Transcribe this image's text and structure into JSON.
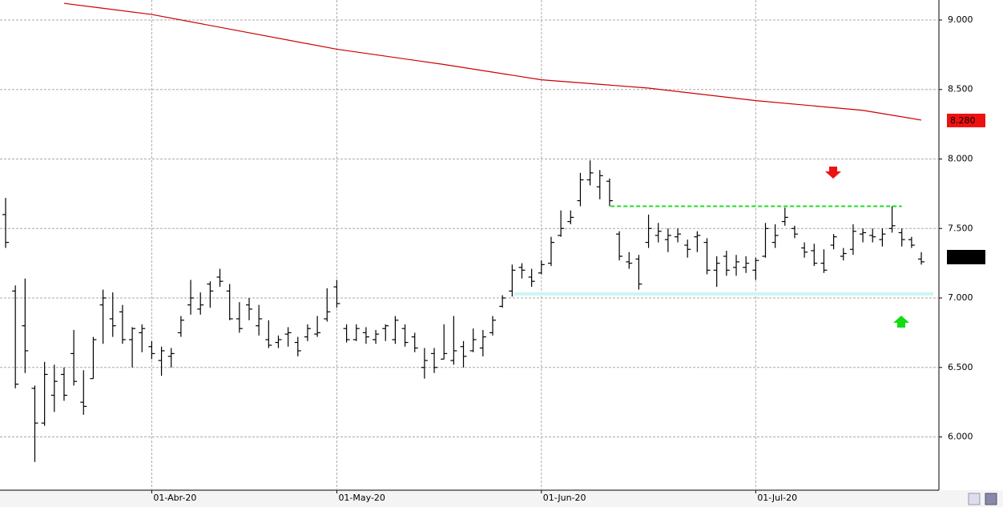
{
  "chart_data": {
    "type": "ohlc",
    "categories": [
      null,
      null,
      null,
      null,
      null,
      null,
      null,
      null,
      null,
      null,
      null,
      null,
      null,
      null,
      null,
      "01-Abr-20",
      null,
      null,
      null,
      null,
      null,
      null,
      null,
      null,
      null,
      null,
      null,
      null,
      null,
      null,
      null,
      null,
      null,
      null,
      "01-May-20",
      null,
      null,
      null,
      null,
      null,
      null,
      null,
      null,
      null,
      null,
      null,
      null,
      null,
      null,
      null,
      null,
      null,
      null,
      null,
      null,
      "01-Jun-20",
      null,
      null,
      null,
      null,
      null,
      null,
      null,
      null,
      null,
      null,
      null,
      null,
      null,
      null,
      null,
      null,
      null,
      null,
      null,
      null,
      null,
      "01-Jul-20",
      null,
      null,
      null,
      null,
      null,
      null,
      null,
      null,
      null,
      null,
      null,
      null,
      null,
      null,
      null,
      null,
      null
    ],
    "ohlc": [
      [
        7.6,
        7.72,
        7.36,
        7.4
      ],
      [
        7.05,
        7.09,
        6.35,
        6.38
      ],
      [
        6.8,
        7.14,
        6.46,
        6.62
      ],
      [
        6.35,
        6.37,
        5.82,
        6.1
      ],
      [
        6.1,
        6.54,
        6.08,
        6.45
      ],
      [
        6.3,
        6.52,
        6.18,
        6.4
      ],
      [
        6.45,
        6.5,
        6.26,
        6.3
      ],
      [
        6.6,
        6.77,
        6.37,
        6.4
      ],
      [
        6.25,
        6.48,
        6.16,
        6.22
      ],
      [
        6.42,
        6.72,
        6.42,
        6.7
      ],
      [
        6.95,
        7.06,
        6.67,
        7.0
      ],
      [
        6.85,
        7.04,
        6.72,
        6.8
      ],
      [
        6.9,
        6.95,
        6.67,
        6.7
      ],
      [
        6.7,
        6.79,
        6.5,
        6.78
      ],
      [
        6.75,
        6.81,
        6.61,
        6.78
      ],
      [
        6.65,
        6.69,
        6.56,
        6.6
      ],
      [
        6.55,
        6.65,
        6.44,
        6.62
      ],
      [
        6.58,
        6.64,
        6.5,
        6.6
      ],
      [
        6.75,
        6.87,
        6.72,
        6.84
      ],
      [
        6.95,
        7.13,
        6.88,
        7.0
      ],
      [
        6.92,
        7.04,
        6.88,
        6.95
      ],
      [
        7.1,
        7.12,
        6.93,
        7.05
      ],
      [
        7.15,
        7.21,
        7.08,
        7.12
      ],
      [
        7.05,
        7.1,
        6.84,
        6.85
      ],
      [
        6.85,
        6.97,
        6.75,
        6.78
      ],
      [
        6.95,
        7.0,
        6.84,
        6.92
      ],
      [
        6.8,
        6.95,
        6.73,
        6.85
      ],
      [
        6.7,
        6.84,
        6.64,
        6.66
      ],
      [
        6.68,
        6.73,
        6.64,
        6.7
      ],
      [
        6.74,
        6.79,
        6.65,
        6.75
      ],
      [
        6.68,
        6.72,
        6.58,
        6.62
      ],
      [
        6.72,
        6.81,
        6.69,
        6.78
      ],
      [
        6.74,
        6.87,
        6.72,
        6.75
      ],
      [
        6.85,
        7.07,
        6.83,
        6.9
      ],
      [
        7.08,
        7.13,
        6.93,
        6.96
      ],
      [
        6.78,
        6.81,
        6.68,
        6.7
      ],
      [
        6.7,
        6.81,
        6.69,
        6.78
      ],
      [
        6.75,
        6.79,
        6.67,
        6.72
      ],
      [
        6.7,
        6.77,
        6.67,
        6.74
      ],
      [
        6.78,
        6.81,
        6.69,
        6.8
      ],
      [
        6.7,
        6.87,
        6.67,
        6.84
      ],
      [
        6.78,
        6.81,
        6.65,
        6.68
      ],
      [
        6.72,
        6.75,
        6.61,
        6.64
      ],
      [
        6.5,
        6.64,
        6.42,
        6.55
      ],
      [
        6.6,
        6.64,
        6.46,
        6.5
      ],
      [
        6.56,
        6.81,
        6.56,
        6.6
      ],
      [
        6.55,
        6.87,
        6.52,
        6.62
      ],
      [
        6.65,
        6.69,
        6.5,
        6.58
      ],
      [
        6.62,
        6.78,
        6.61,
        6.7
      ],
      [
        6.64,
        6.77,
        6.58,
        6.72
      ],
      [
        6.75,
        6.87,
        6.73,
        6.84
      ],
      [
        6.94,
        7.02,
        6.93,
        7.0
      ],
      [
        7.05,
        7.24,
        7.01,
        7.2
      ],
      [
        7.22,
        7.25,
        7.14,
        7.2
      ],
      [
        7.15,
        7.21,
        7.08,
        7.12
      ],
      [
        7.18,
        7.27,
        7.17,
        7.24
      ],
      [
        7.25,
        7.44,
        7.23,
        7.4
      ],
      [
        7.45,
        7.63,
        7.44,
        7.5
      ],
      [
        7.55,
        7.63,
        7.53,
        7.58
      ],
      [
        7.7,
        7.9,
        7.66,
        7.85
      ],
      [
        7.85,
        7.99,
        7.81,
        7.9
      ],
      [
        7.8,
        7.92,
        7.71,
        7.88
      ],
      [
        7.84,
        7.86,
        7.66,
        7.7
      ],
      [
        7.46,
        7.48,
        7.27,
        7.3
      ],
      [
        7.26,
        7.33,
        7.21,
        7.25
      ],
      [
        7.28,
        7.31,
        7.06,
        7.1
      ],
      [
        7.4,
        7.6,
        7.36,
        7.5
      ],
      [
        7.45,
        7.54,
        7.4,
        7.48
      ],
      [
        7.42,
        7.5,
        7.33,
        7.45
      ],
      [
        7.44,
        7.5,
        7.4,
        7.46
      ],
      [
        7.38,
        7.42,
        7.29,
        7.35
      ],
      [
        7.44,
        7.48,
        7.33,
        7.45
      ],
      [
        7.4,
        7.43,
        7.17,
        7.2
      ],
      [
        7.2,
        7.3,
        7.08,
        7.25
      ],
      [
        7.3,
        7.34,
        7.16,
        7.2
      ],
      [
        7.22,
        7.31,
        7.16,
        7.26
      ],
      [
        7.22,
        7.3,
        7.18,
        7.25
      ],
      [
        7.2,
        7.29,
        7.13,
        7.27
      ],
      [
        7.3,
        7.54,
        7.29,
        7.5
      ],
      [
        7.4,
        7.53,
        7.36,
        7.45
      ],
      [
        7.55,
        7.65,
        7.52,
        7.58
      ],
      [
        7.5,
        7.52,
        7.43,
        7.46
      ],
      [
        7.36,
        7.4,
        7.29,
        7.33
      ],
      [
        7.34,
        7.39,
        7.23,
        7.25
      ],
      [
        7.25,
        7.35,
        7.18,
        7.2
      ],
      [
        7.38,
        7.46,
        7.35,
        7.44
      ],
      [
        7.3,
        7.36,
        7.27,
        7.32
      ],
      [
        7.35,
        7.53,
        7.31,
        7.48
      ],
      [
        7.46,
        7.5,
        7.4,
        7.47
      ],
      [
        7.45,
        7.5,
        7.4,
        7.44
      ],
      [
        7.42,
        7.5,
        7.37,
        7.46
      ],
      [
        7.5,
        7.66,
        7.47,
        7.52
      ],
      [
        7.47,
        7.5,
        7.37,
        7.42
      ],
      [
        7.42,
        7.44,
        7.36,
        7.38
      ],
      [
        7.28,
        7.33,
        7.24,
        7.26
      ]
    ],
    "color": "#000000",
    "ma": {
      "color": "#cc0000",
      "x": [
        6,
        15,
        34,
        45,
        55,
        66,
        77,
        88,
        94
      ],
      "values": [
        9.12,
        9.04,
        8.79,
        8.68,
        8.57,
        8.51,
        8.42,
        8.35,
        8.28
      ],
      "last_label": "8.280"
    },
    "resistance": {
      "value": 7.66,
      "color": "#22dd22"
    },
    "support": {
      "value": 7.03,
      "color": "#ccf5f5"
    },
    "ylim": [
      5.617,
      9.144
    ],
    "yticks": [
      {
        "value": 6,
        "label": "6.000"
      },
      {
        "value": 6.5,
        "label": "6.500"
      },
      {
        "value": 7,
        "label": "7.000"
      },
      {
        "value": 7.5,
        "label": "7.500"
      },
      {
        "value": 8,
        "label": "8.000"
      },
      {
        "value": 8.5,
        "label": "8.500"
      },
      {
        "value": 9,
        "label": "9.000"
      }
    ],
    "grid": true
  }
}
